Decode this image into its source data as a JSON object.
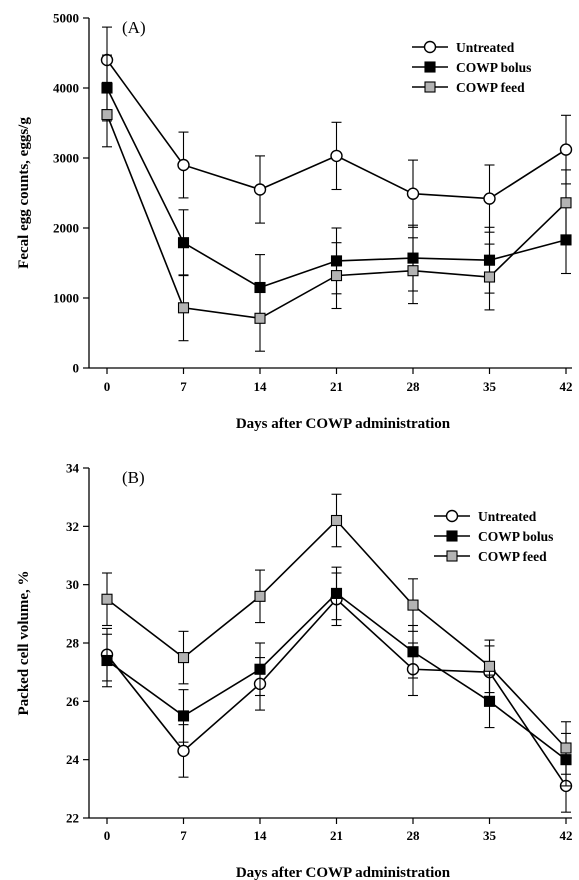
{
  "chart_data": [
    {
      "type": "line",
      "panel_label": "(A)",
      "xlabel": "Days after COWP administration",
      "ylabel": "Fecal egg counts, eggs/g",
      "x": [
        0,
        7,
        14,
        21,
        28,
        35,
        42
      ],
      "x_tick_labels": [
        "0",
        "7",
        "14",
        "21",
        "28",
        "35",
        "42"
      ],
      "ylim": [
        0,
        5000
      ],
      "y_ticks": [
        0,
        1000,
        2000,
        3000,
        4000,
        5000
      ],
      "y_tick_labels": [
        "0",
        "1000",
        "2000",
        "3000",
        "4000",
        "5000"
      ],
      "legend_position": "top-right",
      "grid": false,
      "series": [
        {
          "name": "Untreated",
          "marker": "circle-open",
          "fill": "#ffffff",
          "values": [
            4400,
            2900,
            2550,
            3030,
            2490,
            2420,
            3120
          ],
          "errors": [
            470,
            470,
            480,
            480,
            480,
            480,
            490
          ]
        },
        {
          "name": "COWP bolus",
          "marker": "square-filled",
          "fill": "#000000",
          "values": [
            4000,
            1790,
            1150,
            1530,
            1570,
            1540,
            1830
          ],
          "errors": [
            470,
            470,
            470,
            470,
            470,
            470,
            480
          ]
        },
        {
          "name": "COWP feed",
          "marker": "square-gray",
          "fill": "#b3b3b3",
          "values": [
            3620,
            860,
            710,
            1320,
            1390,
            1300,
            2360
          ],
          "errors": [
            460,
            470,
            470,
            470,
            470,
            470,
            470
          ]
        }
      ]
    },
    {
      "type": "line",
      "panel_label": "(B)",
      "xlabel": "Days after COWP administration",
      "ylabel": "Packed cell volume, %",
      "x": [
        0,
        7,
        14,
        21,
        28,
        35,
        42
      ],
      "x_tick_labels": [
        "0",
        "7",
        "14",
        "21",
        "28",
        "35",
        "42"
      ],
      "ylim": [
        22,
        34
      ],
      "y_ticks": [
        22,
        24,
        26,
        28,
        30,
        32,
        34
      ],
      "y_tick_labels": [
        "22",
        "24",
        "26",
        "28",
        "30",
        "32",
        "34"
      ],
      "legend_position": "top-right",
      "grid": false,
      "series": [
        {
          "name": "Untreated",
          "marker": "circle-open",
          "fill": "#ffffff",
          "values": [
            27.6,
            24.3,
            26.6,
            29.5,
            27.1,
            27.0,
            23.1
          ],
          "errors": [
            0.9,
            0.9,
            0.9,
            0.9,
            0.9,
            0.9,
            0.9
          ]
        },
        {
          "name": "COWP bolus",
          "marker": "square-filled",
          "fill": "#000000",
          "values": [
            27.4,
            25.5,
            27.1,
            29.7,
            27.7,
            26.0,
            24.0
          ],
          "errors": [
            0.9,
            0.9,
            0.9,
            0.9,
            0.9,
            0.9,
            0.9
          ]
        },
        {
          "name": "COWP feed",
          "marker": "square-gray",
          "fill": "#b3b3b3",
          "values": [
            29.5,
            27.5,
            29.6,
            32.2,
            29.3,
            27.2,
            24.4
          ],
          "errors": [
            0.9,
            0.9,
            0.9,
            0.9,
            0.9,
            0.9,
            0.9
          ]
        }
      ]
    }
  ]
}
